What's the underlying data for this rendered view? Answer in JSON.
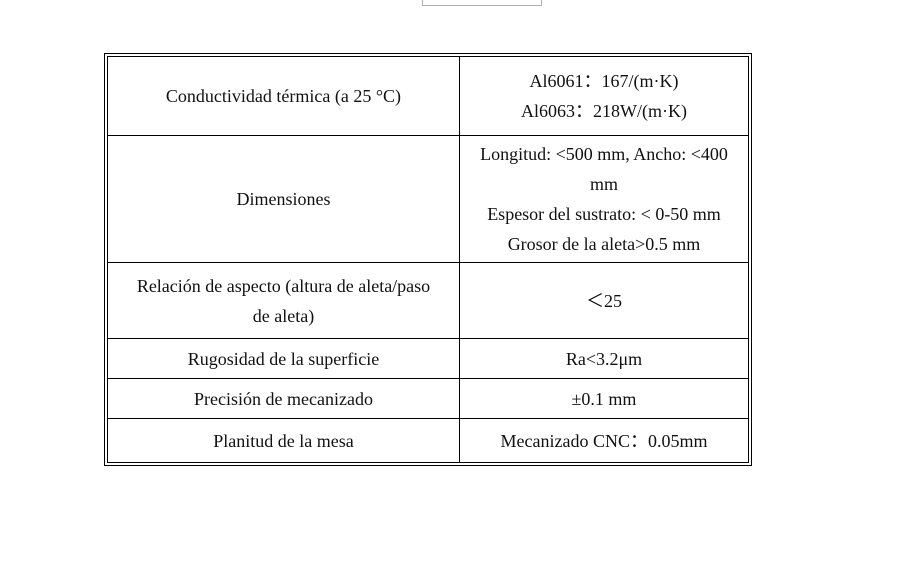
{
  "rows": [
    {
      "label": "Conductividad térmica (a 25 °C)",
      "value": [
        "Al6061：167/(m·K)",
        "Al6063：218W/(m·K)"
      ]
    },
    {
      "label": "Dimensiones",
      "value": [
        "Longitud: <500 mm, Ancho: <400 mm",
        "Espesor del sustrato: < 0-50 mm",
        "Grosor de la aleta>0.5 mm"
      ]
    },
    {
      "label": "Relación de aspecto (altura de aleta/paso de aleta)",
      "value": [
        "＜25"
      ]
    },
    {
      "label": "Rugosidad de la superficie",
      "value": [
        "Ra<3.2μm"
      ]
    },
    {
      "label": "Precisión de mecanizado",
      "value": [
        "±0.1 mm"
      ]
    },
    {
      "label": "Planitud de la mesa",
      "value": [
        "Mecanizado CNC：0.05mm"
      ]
    }
  ]
}
